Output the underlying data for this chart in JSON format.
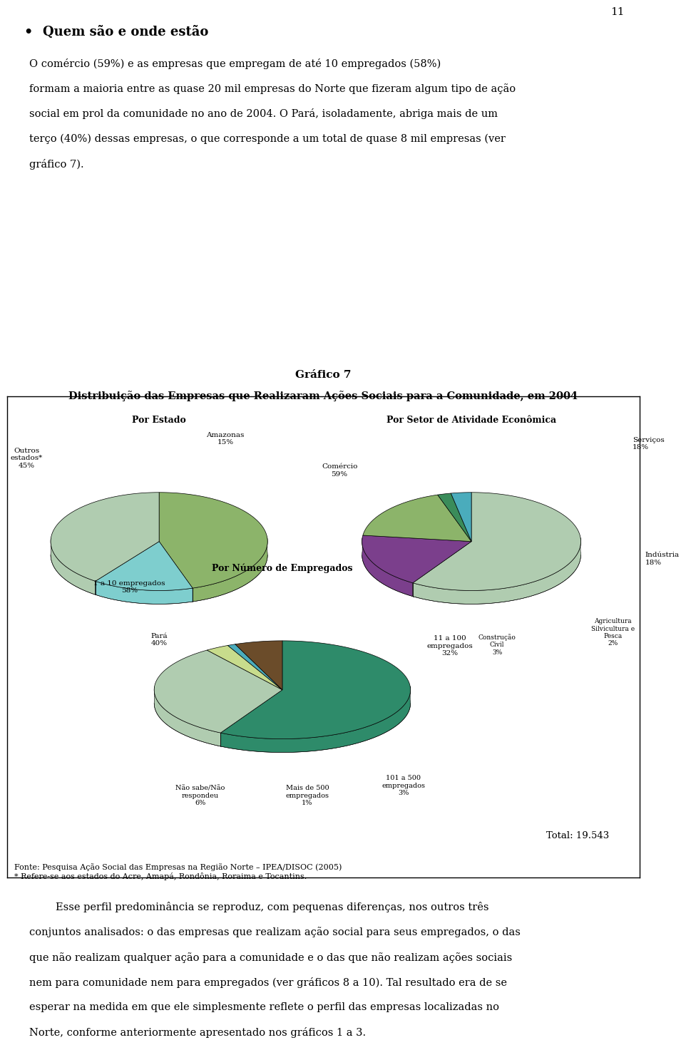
{
  "page_number": "11",
  "bullet_title": "Quem são e onde estão",
  "chart_title_line1": "Gráfico 7",
  "chart_title_line2": "Distribuição das Empresas que Realizaram Ações Sociais para a Comunidade, em 2004",
  "pie1_title": "Por Estado",
  "pie1_values": [
    45,
    15,
    40
  ],
  "pie1_colors": [
    "#8CB46A",
    "#7ECECE",
    "#B0CCB0"
  ],
  "pie1_label_outros": "Outros\nestados*\n45%",
  "pie1_label_amazonas": "Amazonas\n15%",
  "pie1_label_para": "Pará\n40%",
  "pie2_title": "Por Setor de Atividade Econômica",
  "pie2_values": [
    59,
    18,
    18,
    2,
    3
  ],
  "pie2_colors": [
    "#B0CCB0",
    "#7B3F8C",
    "#8CB46A",
    "#3A8C5A",
    "#4AACBC"
  ],
  "pie2_label_comercio": "Comércio\n59%",
  "pie2_label_servicos": "Serviços\n18%",
  "pie2_label_industria": "Indústria\n18%",
  "pie2_label_agri": "Agricultura\nSilvicultura e\nPesca\n2%",
  "pie2_label_constr": "Construção\nCivil\n3%",
  "pie3_title": "Por Número de Empregados",
  "pie3_values": [
    58,
    32,
    3,
    1,
    6
  ],
  "pie3_colors": [
    "#2E8B6A",
    "#B0CCB0",
    "#C8DC8C",
    "#4AACBC",
    "#6B4C2A"
  ],
  "pie3_label_1_10": "1 a 10 empregados\n58%",
  "pie3_label_11_100": "11 a 100\nempregados\n32%",
  "pie3_label_101_500": "101 a 500\nempregados\n3%",
  "pie3_label_500": "Mais de 500\nempregados\n1%",
  "pie3_label_ns": "Não sabe/Não\nrespondeu\n6%",
  "total_text": "Total: 19.543",
  "source_line1": "Fonte: Pesquisa Ação Social das Empresas na Região Norte – IPEA/DISOC (2005)",
  "source_line2": "* Refere-se aos estados do Acre, Amapá, Rondônia, Roraima e Tocantins.",
  "bg_color": "#ffffff",
  "text_color": "#000000"
}
